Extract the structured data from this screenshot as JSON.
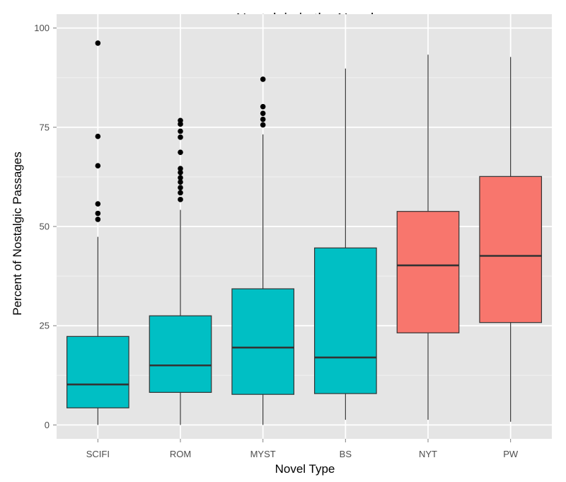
{
  "chart_data": {
    "type": "boxplot",
    "title": "Nostalgia in the Novel",
    "xlabel": "Novel Type",
    "ylabel": "Percent of Nostalgic Passages",
    "ylim": [
      -3.5,
      103.5
    ],
    "yticks": [
      0,
      25,
      50,
      75,
      100
    ],
    "grid": true,
    "legend": "none",
    "colors": {
      "teal": "#00bfc4",
      "salmon": "#f8766d",
      "panel": "#e5e5e5",
      "grid": "#ffffff",
      "outline": "#333333"
    },
    "categories": [
      "SCIFI",
      "ROM",
      "MYST",
      "BS",
      "NYT",
      "PW"
    ],
    "boxes": [
      {
        "category": "SCIFI",
        "fill": "#00bfc4",
        "whisker_low": 0,
        "q1": 4.3,
        "median": 10.2,
        "q3": 22.3,
        "whisker_high": 47.4,
        "outliers": [
          51.8,
          53.3,
          55.7,
          65.3,
          72.7,
          96.2
        ]
      },
      {
        "category": "ROM",
        "fill": "#00bfc4",
        "whisker_low": 0,
        "q1": 8.2,
        "median": 15.0,
        "q3": 27.5,
        "whisker_high": 54.2,
        "outliers": [
          56.8,
          58.5,
          59.8,
          61.2,
          62.3,
          63.6,
          64.6,
          68.7,
          72.5,
          74.0,
          75.8,
          76.7
        ]
      },
      {
        "category": "MYST",
        "fill": "#00bfc4",
        "whisker_low": 0,
        "q1": 7.7,
        "median": 19.5,
        "q3": 34.3,
        "whisker_high": 73.2,
        "outliers": [
          75.6,
          77.0,
          78.5,
          80.2,
          87.1
        ]
      },
      {
        "category": "BS",
        "fill": "#00bfc4",
        "whisker_low": 1.3,
        "q1": 7.9,
        "median": 17.0,
        "q3": 44.6,
        "whisker_high": 89.8,
        "outliers": []
      },
      {
        "category": "NYT",
        "fill": "#f8766d",
        "whisker_low": 1.3,
        "q1": 23.2,
        "median": 40.2,
        "q3": 53.8,
        "whisker_high": 93.3,
        "outliers": []
      },
      {
        "category": "PW",
        "fill": "#f8766d",
        "whisker_low": 0.8,
        "q1": 25.8,
        "median": 42.6,
        "q3": 62.6,
        "whisker_high": 92.7,
        "outliers": []
      }
    ]
  }
}
